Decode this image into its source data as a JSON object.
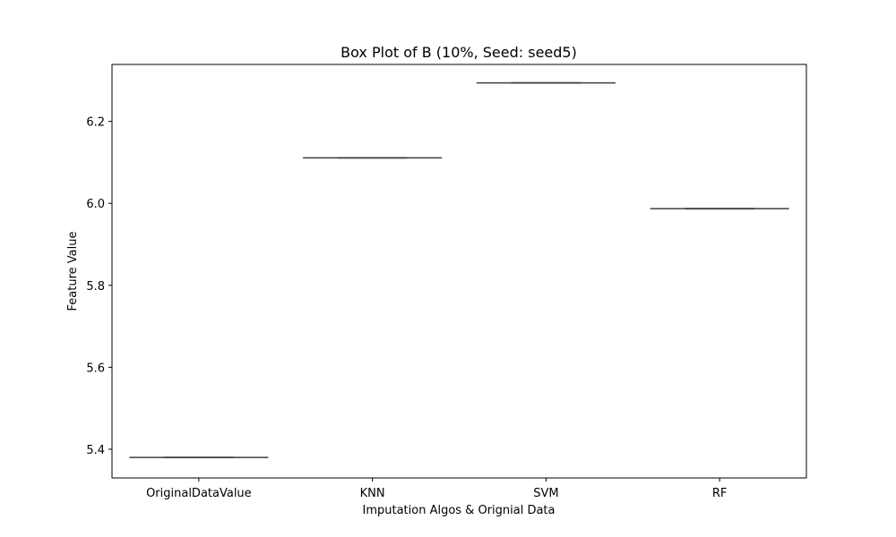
{
  "chart_data": {
    "type": "box",
    "title": "Box Plot of B (10%, Seed: seed5)",
    "xlabel": "Imputation Algos & Orignial Data",
    "ylabel": "Feature Value",
    "categories": [
      "OriginalDataValue",
      "KNN",
      "SVM",
      "RF"
    ],
    "values": [
      5.38,
      6.111,
      6.294,
      5.987
    ],
    "ylim": [
      5.33,
      6.339
    ],
    "yticks": [
      5.4,
      5.6,
      5.8,
      6.0,
      6.2
    ],
    "ytick_labels": [
      "5.4",
      "5.6",
      "5.8",
      "6.0",
      "6.2"
    ],
    "grid": false,
    "colors": {
      "box_line": "#3f3f3f",
      "axis": "#000000"
    }
  }
}
